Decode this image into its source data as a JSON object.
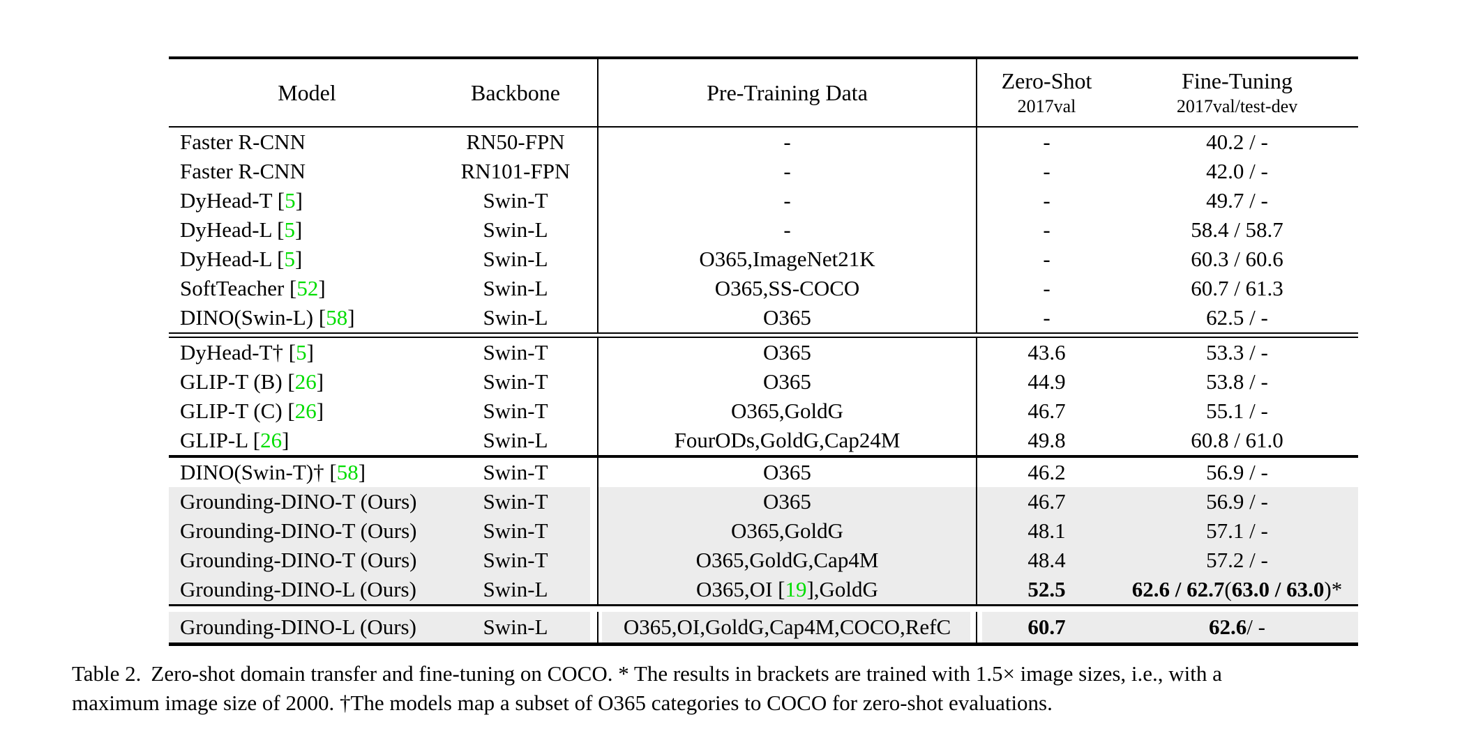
{
  "colors": {
    "citation_green": "#00dd00",
    "row_highlight_gray": "#ececec",
    "rule_black": "#000000"
  },
  "table": {
    "headers": {
      "model": "Model",
      "backbone": "Backbone",
      "pretrain": "Pre-Training Data",
      "zeroshot_title": "Zero-Shot",
      "zeroshot_sub": "2017val",
      "finetune_title": "Fine-Tuning",
      "finetune_sub": "2017val/test-dev"
    },
    "sections": [
      {
        "rows": [
          {
            "model": [
              [
                "Faster R-CNN"
              ]
            ],
            "backbone": "RN50-FPN",
            "pretrain": [
              [
                "-"
              ]
            ],
            "zeroshot": [
              [
                "-"
              ]
            ],
            "finetune": [
              [
                "40.2 / -"
              ]
            ],
            "gray": false
          },
          {
            "model": [
              [
                "Faster R-CNN"
              ]
            ],
            "backbone": "RN101-FPN",
            "pretrain": [
              [
                "-"
              ]
            ],
            "zeroshot": [
              [
                "-"
              ]
            ],
            "finetune": [
              [
                "42.0 / -"
              ]
            ],
            "gray": false
          },
          {
            "model": [
              [
                "DyHead-T ["
              ],
              [
                "5",
                "g"
              ],
              [
                "]"
              ]
            ],
            "backbone": "Swin-T",
            "pretrain": [
              [
                "-"
              ]
            ],
            "zeroshot": [
              [
                "-"
              ]
            ],
            "finetune": [
              [
                "49.7 / -"
              ]
            ],
            "gray": false
          },
          {
            "model": [
              [
                "DyHead-L ["
              ],
              [
                "5",
                "g"
              ],
              [
                "]"
              ]
            ],
            "backbone": "Swin-L",
            "pretrain": [
              [
                "-"
              ]
            ],
            "zeroshot": [
              [
                "-"
              ]
            ],
            "finetune": [
              [
                "58.4 / 58.7"
              ]
            ],
            "gray": false
          },
          {
            "model": [
              [
                "DyHead-L ["
              ],
              [
                "5",
                "g"
              ],
              [
                "]"
              ]
            ],
            "backbone": "Swin-L",
            "pretrain": [
              [
                "O365,ImageNet21K"
              ]
            ],
            "zeroshot": [
              [
                "-"
              ]
            ],
            "finetune": [
              [
                "60.3 / 60.6"
              ]
            ],
            "gray": false
          },
          {
            "model": [
              [
                "SoftTeacher ["
              ],
              [
                "52",
                "g"
              ],
              [
                "]"
              ]
            ],
            "backbone": "Swin-L",
            "pretrain": [
              [
                "O365,SS-COCO"
              ]
            ],
            "zeroshot": [
              [
                "-"
              ]
            ],
            "finetune": [
              [
                "60.7 / 61.3"
              ]
            ],
            "gray": false
          },
          {
            "model": [
              [
                "DINO(Swin-L) ["
              ],
              [
                "58",
                "g"
              ],
              [
                "]"
              ]
            ],
            "backbone": "Swin-L",
            "pretrain": [
              [
                "O365"
              ]
            ],
            "zeroshot": [
              [
                "-"
              ]
            ],
            "finetune": [
              [
                "62.5 / -"
              ]
            ],
            "gray": false
          }
        ]
      },
      {
        "rows": [
          {
            "model": [
              [
                "DyHead-T† ["
              ],
              [
                "5",
                "g"
              ],
              [
                "]"
              ]
            ],
            "backbone": "Swin-T",
            "pretrain": [
              [
                "O365"
              ]
            ],
            "zeroshot": [
              [
                "43.6"
              ]
            ],
            "finetune": [
              [
                "53.3 / -"
              ]
            ],
            "gray": false
          },
          {
            "model": [
              [
                "GLIP-T (B) ["
              ],
              [
                "26",
                "g"
              ],
              [
                "]"
              ]
            ],
            "backbone": "Swin-T",
            "pretrain": [
              [
                "O365"
              ]
            ],
            "zeroshot": [
              [
                "44.9"
              ]
            ],
            "finetune": [
              [
                "53.8 / -"
              ]
            ],
            "gray": false
          },
          {
            "model": [
              [
                "GLIP-T (C) ["
              ],
              [
                "26",
                "g"
              ],
              [
                "]"
              ]
            ],
            "backbone": "Swin-T",
            "pretrain": [
              [
                "O365,GoldG"
              ]
            ],
            "zeroshot": [
              [
                "46.7"
              ]
            ],
            "finetune": [
              [
                "55.1 / -"
              ]
            ],
            "gray": false
          },
          {
            "model": [
              [
                "GLIP-L ["
              ],
              [
                "26",
                "g"
              ],
              [
                "]"
              ]
            ],
            "backbone": "Swin-L",
            "pretrain": [
              [
                "FourODs,GoldG,Cap24M"
              ]
            ],
            "zeroshot": [
              [
                "49.8"
              ]
            ],
            "finetune": [
              [
                "60.8 / 61.0"
              ]
            ],
            "gray": false
          }
        ]
      },
      {
        "rows": [
          {
            "model": [
              [
                "DINO(Swin-T)† ["
              ],
              [
                "58",
                "g"
              ],
              [
                "]"
              ]
            ],
            "backbone": "Swin-T",
            "pretrain": [
              [
                "O365"
              ]
            ],
            "zeroshot": [
              [
                "46.2"
              ]
            ],
            "finetune": [
              [
                "56.9 / -"
              ]
            ],
            "gray": false
          },
          {
            "model": [
              [
                "Grounding-DINO-T (Ours)"
              ]
            ],
            "backbone": "Swin-T",
            "pretrain": [
              [
                "O365"
              ]
            ],
            "zeroshot": [
              [
                "46.7"
              ]
            ],
            "finetune": [
              [
                "56.9 / -"
              ]
            ],
            "gray": true
          },
          {
            "model": [
              [
                "Grounding-DINO-T (Ours)"
              ]
            ],
            "backbone": "Swin-T",
            "pretrain": [
              [
                "O365,GoldG"
              ]
            ],
            "zeroshot": [
              [
                "48.1"
              ]
            ],
            "finetune": [
              [
                "57.1 / -"
              ]
            ],
            "gray": true
          },
          {
            "model": [
              [
                "Grounding-DINO-T (Ours)"
              ]
            ],
            "backbone": "Swin-T",
            "pretrain": [
              [
                "O365,GoldG,Cap4M"
              ]
            ],
            "zeroshot": [
              [
                "48.4"
              ]
            ],
            "finetune": [
              [
                "57.2 / -"
              ]
            ],
            "gray": true
          },
          {
            "model": [
              [
                "Grounding-DINO-L (Ours)"
              ]
            ],
            "backbone": "Swin-L",
            "pretrain": [
              [
                "O365,OI ["
              ],
              [
                "19",
                "g"
              ],
              [
                "],GoldG"
              ]
            ],
            "zeroshot": [
              [
                "52.5",
                "b"
              ]
            ],
            "finetune": [
              [
                "62.6 / 62.7",
                "b"
              ],
              [
                " ("
              ],
              [
                "63.0 / 63.0",
                "b"
              ],
              [
                ")*"
              ]
            ],
            "gray": true
          }
        ]
      },
      {
        "rows": [
          {
            "model": [
              [
                "Grounding-DINO-L (Ours)"
              ]
            ],
            "backbone": "Swin-L",
            "pretrain": [
              [
                "O365,OI,GoldG,Cap4M,COCO,RefC"
              ]
            ],
            "zeroshot": [
              [
                "60.7",
                "b"
              ]
            ],
            "finetune": [
              [
                "62.6",
                "b"
              ],
              [
                " / -"
              ]
            ],
            "gray": true,
            "gaps": true
          }
        ]
      }
    ]
  },
  "caption": {
    "label": "Table 2.",
    "line1": "Zero-shot domain transfer and fine-tuning on COCO. * The results in brackets are trained with 1.5× image sizes, i.e., with a",
    "line2": "maximum image size of 2000. †The models map a subset of O365 categories to COCO for zero-shot evaluations."
  }
}
